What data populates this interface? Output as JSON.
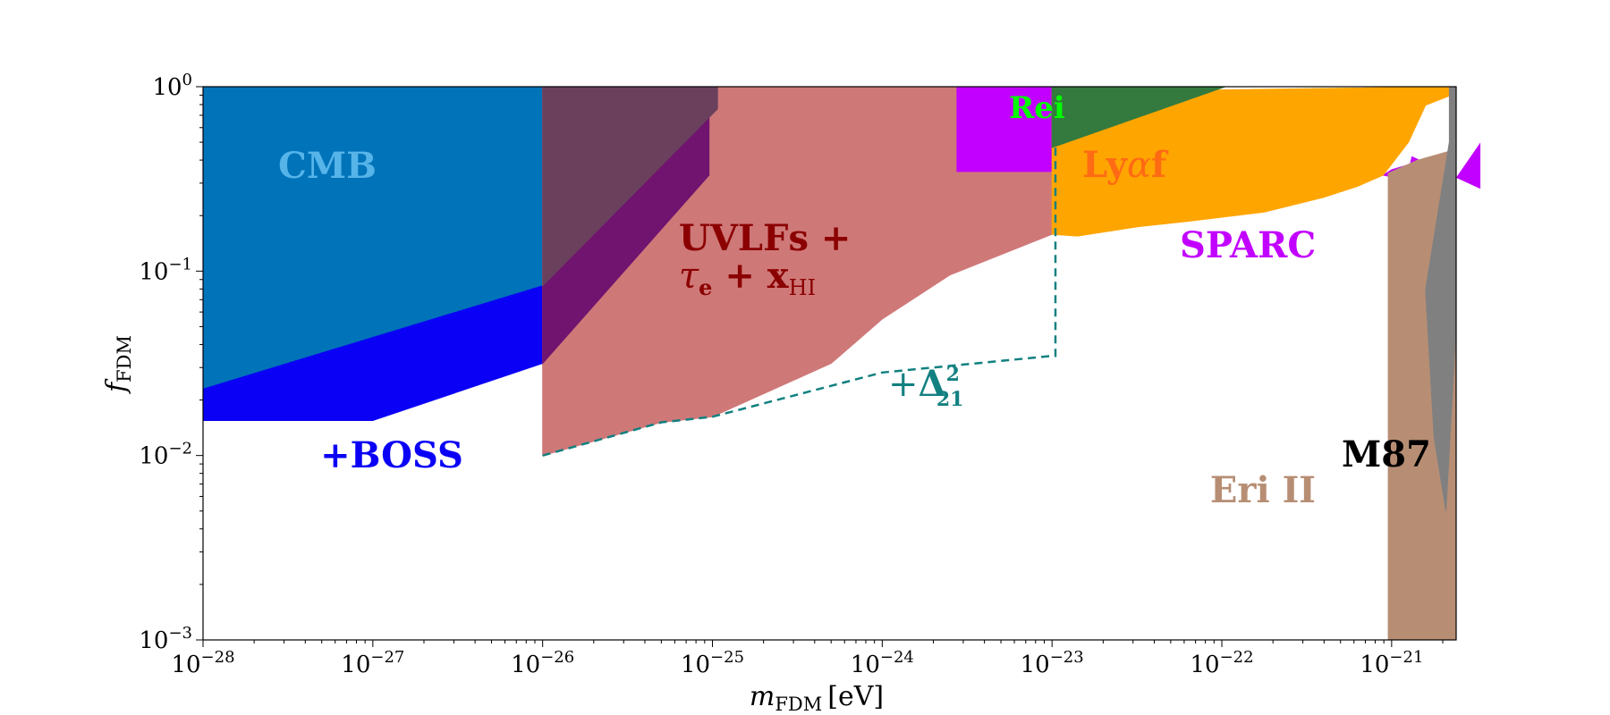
{
  "chart_data": {
    "type": "area",
    "title": "",
    "xlabel": {
      "var": "m",
      "sub": "FDM",
      "unit": "[eV]"
    },
    "ylabel": {
      "var": "f",
      "sub": "FDM"
    },
    "xscale": "log",
    "yscale": "log",
    "xlim_log10": [
      -28,
      -20.62
    ],
    "ylim_log10": [
      -3,
      0
    ],
    "x_ticks": [
      {
        "base": "10",
        "exp": "−28",
        "log": -28
      },
      {
        "base": "10",
        "exp": "−27",
        "log": -27
      },
      {
        "base": "10",
        "exp": "−26",
        "log": -26
      },
      {
        "base": "10",
        "exp": "−25",
        "log": -25
      },
      {
        "base": "10",
        "exp": "−24",
        "log": -24
      },
      {
        "base": "10",
        "exp": "−23",
        "log": -23
      },
      {
        "base": "10",
        "exp": "−22",
        "log": -22
      },
      {
        "base": "10",
        "exp": "−21",
        "log": -21
      }
    ],
    "y_ticks": [
      {
        "base": "10",
        "exp": "0",
        "log": 0
      },
      {
        "base": "10",
        "exp": "−1",
        "log": -1
      },
      {
        "base": "10",
        "exp": "−2",
        "log": -2
      },
      {
        "base": "10",
        "exp": "−3",
        "log": -3
      }
    ],
    "regions": [
      {
        "name": "cmb",
        "color": "#0173b9",
        "points": [
          [
            -28,
            0
          ],
          [
            -26,
            0
          ],
          [
            -26,
            -1.08
          ],
          [
            -28,
            -1.64
          ]
        ]
      },
      {
        "name": "boss",
        "color": "#0a00f5",
        "points": [
          [
            -28,
            -1.64
          ],
          [
            -26,
            -1.08
          ],
          [
            -26,
            -1.5
          ],
          [
            -27,
            -1.81
          ],
          [
            -28,
            -1.81
          ]
        ]
      },
      {
        "name": "uvlf",
        "color": "#cf7878",
        "points": [
          [
            -26,
            0
          ],
          [
            -23,
            0
          ],
          [
            -23,
            -0.8
          ],
          [
            -23.6,
            -1.02
          ],
          [
            -24,
            -1.26
          ],
          [
            -24.3,
            -1.5
          ],
          [
            -25,
            -1.79
          ],
          [
            -25.3,
            -1.82
          ],
          [
            -26,
            -2
          ]
        ]
      },
      {
        "name": "uvlf-boss-overlap",
        "color": "#701470",
        "points": [
          [
            -26,
            -1.08
          ],
          [
            -25.02,
            -0.12
          ],
          [
            -25.02,
            -0.48
          ],
          [
            -26,
            -1.5
          ]
        ]
      },
      {
        "name": "uvlf-cmb-overlap",
        "color": "#6a405d",
        "points": [
          [
            -26,
            0
          ],
          [
            -24.97,
            0
          ],
          [
            -24.97,
            -0.12
          ],
          [
            -26,
            -1.08
          ]
        ]
      },
      {
        "name": "sparc",
        "color": "#c200ff",
        "points": [
          [
            -23.56,
            0
          ],
          [
            -23,
            0
          ],
          [
            -23,
            -0.46
          ],
          [
            -23.56,
            -0.46
          ]
        ]
      },
      {
        "name": "sparc-high",
        "color": "#c200ff",
        "points": [
          [
            -20.66,
            -0.55
          ],
          [
            -20.48,
            -0.31
          ],
          [
            -20.48,
            -0.55
          ],
          [
            -20.88,
            -0.38
          ],
          [
            -20.89,
            -0.42
          ],
          [
            -21.0,
            -0.45
          ],
          [
            -21.05,
            -0.48
          ]
        ]
      },
      {
        "name": "lyaf",
        "color": "#ffa500",
        "points": [
          [
            -23,
            -0.03
          ],
          [
            -20.66,
            0
          ],
          [
            -20.66,
            -0.05
          ],
          [
            -20.8,
            -0.1
          ],
          [
            -20.9,
            -0.3
          ],
          [
            -21.05,
            -0.48
          ],
          [
            -21.2,
            -0.54
          ],
          [
            -21.4,
            -0.6
          ],
          [
            -21.75,
            -0.68
          ],
          [
            -22.2,
            -0.73
          ],
          [
            -22.5,
            -0.76
          ],
          [
            -22.85,
            -0.81
          ],
          [
            -23,
            -0.8
          ]
        ]
      },
      {
        "name": "rei",
        "color": "#347a3e",
        "points": [
          [
            -23,
            0
          ],
          [
            -21.98,
            0
          ],
          [
            -23,
            -0.33
          ]
        ]
      },
      {
        "name": "eri",
        "color": "#b78e74",
        "points": [
          [
            -21.02,
            -3
          ],
          [
            -20.62,
            -3
          ],
          [
            -20.62,
            -0.3
          ],
          [
            -20.66,
            -0.35
          ],
          [
            -20.85,
            -0.4
          ],
          [
            -21.02,
            -0.47
          ]
        ]
      },
      {
        "name": "m87",
        "color": "#808080",
        "points": [
          [
            -20.66,
            0
          ],
          [
            -20.62,
            0
          ],
          [
            -20.62,
            -1.3
          ],
          [
            -20.68,
            -2.3
          ],
          [
            -20.75,
            -1.9
          ],
          [
            -20.8,
            -1.1
          ],
          [
            -20.66,
            -0.3
          ]
        ]
      }
    ],
    "delta21_line": {
      "color": "#128080",
      "points": [
        [
          -26,
          -2
        ],
        [
          -25.3,
          -1.82
        ],
        [
          -25,
          -1.79
        ],
        [
          -24,
          -1.55
        ],
        [
          -23,
          -1.46
        ],
        [
          -22.98,
          -1.46
        ],
        [
          -22.98,
          -0.32
        ]
      ]
    },
    "labels": {
      "cmb": {
        "text": "CMB",
        "color": "#56b4e9"
      },
      "boss": {
        "text": "+BOSS",
        "color": "#0a00f5"
      },
      "uvlf_line1": {
        "text": "UVLFs +",
        "color": "#8b0000"
      },
      "uvlf_line2": {
        "tau": "τ",
        "tau_sub": "e",
        "plus": " + ",
        "x": "x",
        "x_sub": "HI",
        "color": "#8b0000"
      },
      "delta21": {
        "plus": "+",
        "delta": "Δ",
        "sup": "2",
        "sub": "21",
        "color": "#128080"
      },
      "rei": {
        "text": "Rei",
        "color": "#00ff00"
      },
      "lyaf": {
        "ly": "Ly",
        "alpha": "α",
        "f": "f",
        "color": "#ff6a14"
      },
      "sparc": {
        "text": "SPARC",
        "color": "#c200ff"
      },
      "eri": {
        "text": "Eri II",
        "color": "#b78e74"
      },
      "m87": {
        "text": "M87",
        "color": "#000000"
      }
    }
  }
}
